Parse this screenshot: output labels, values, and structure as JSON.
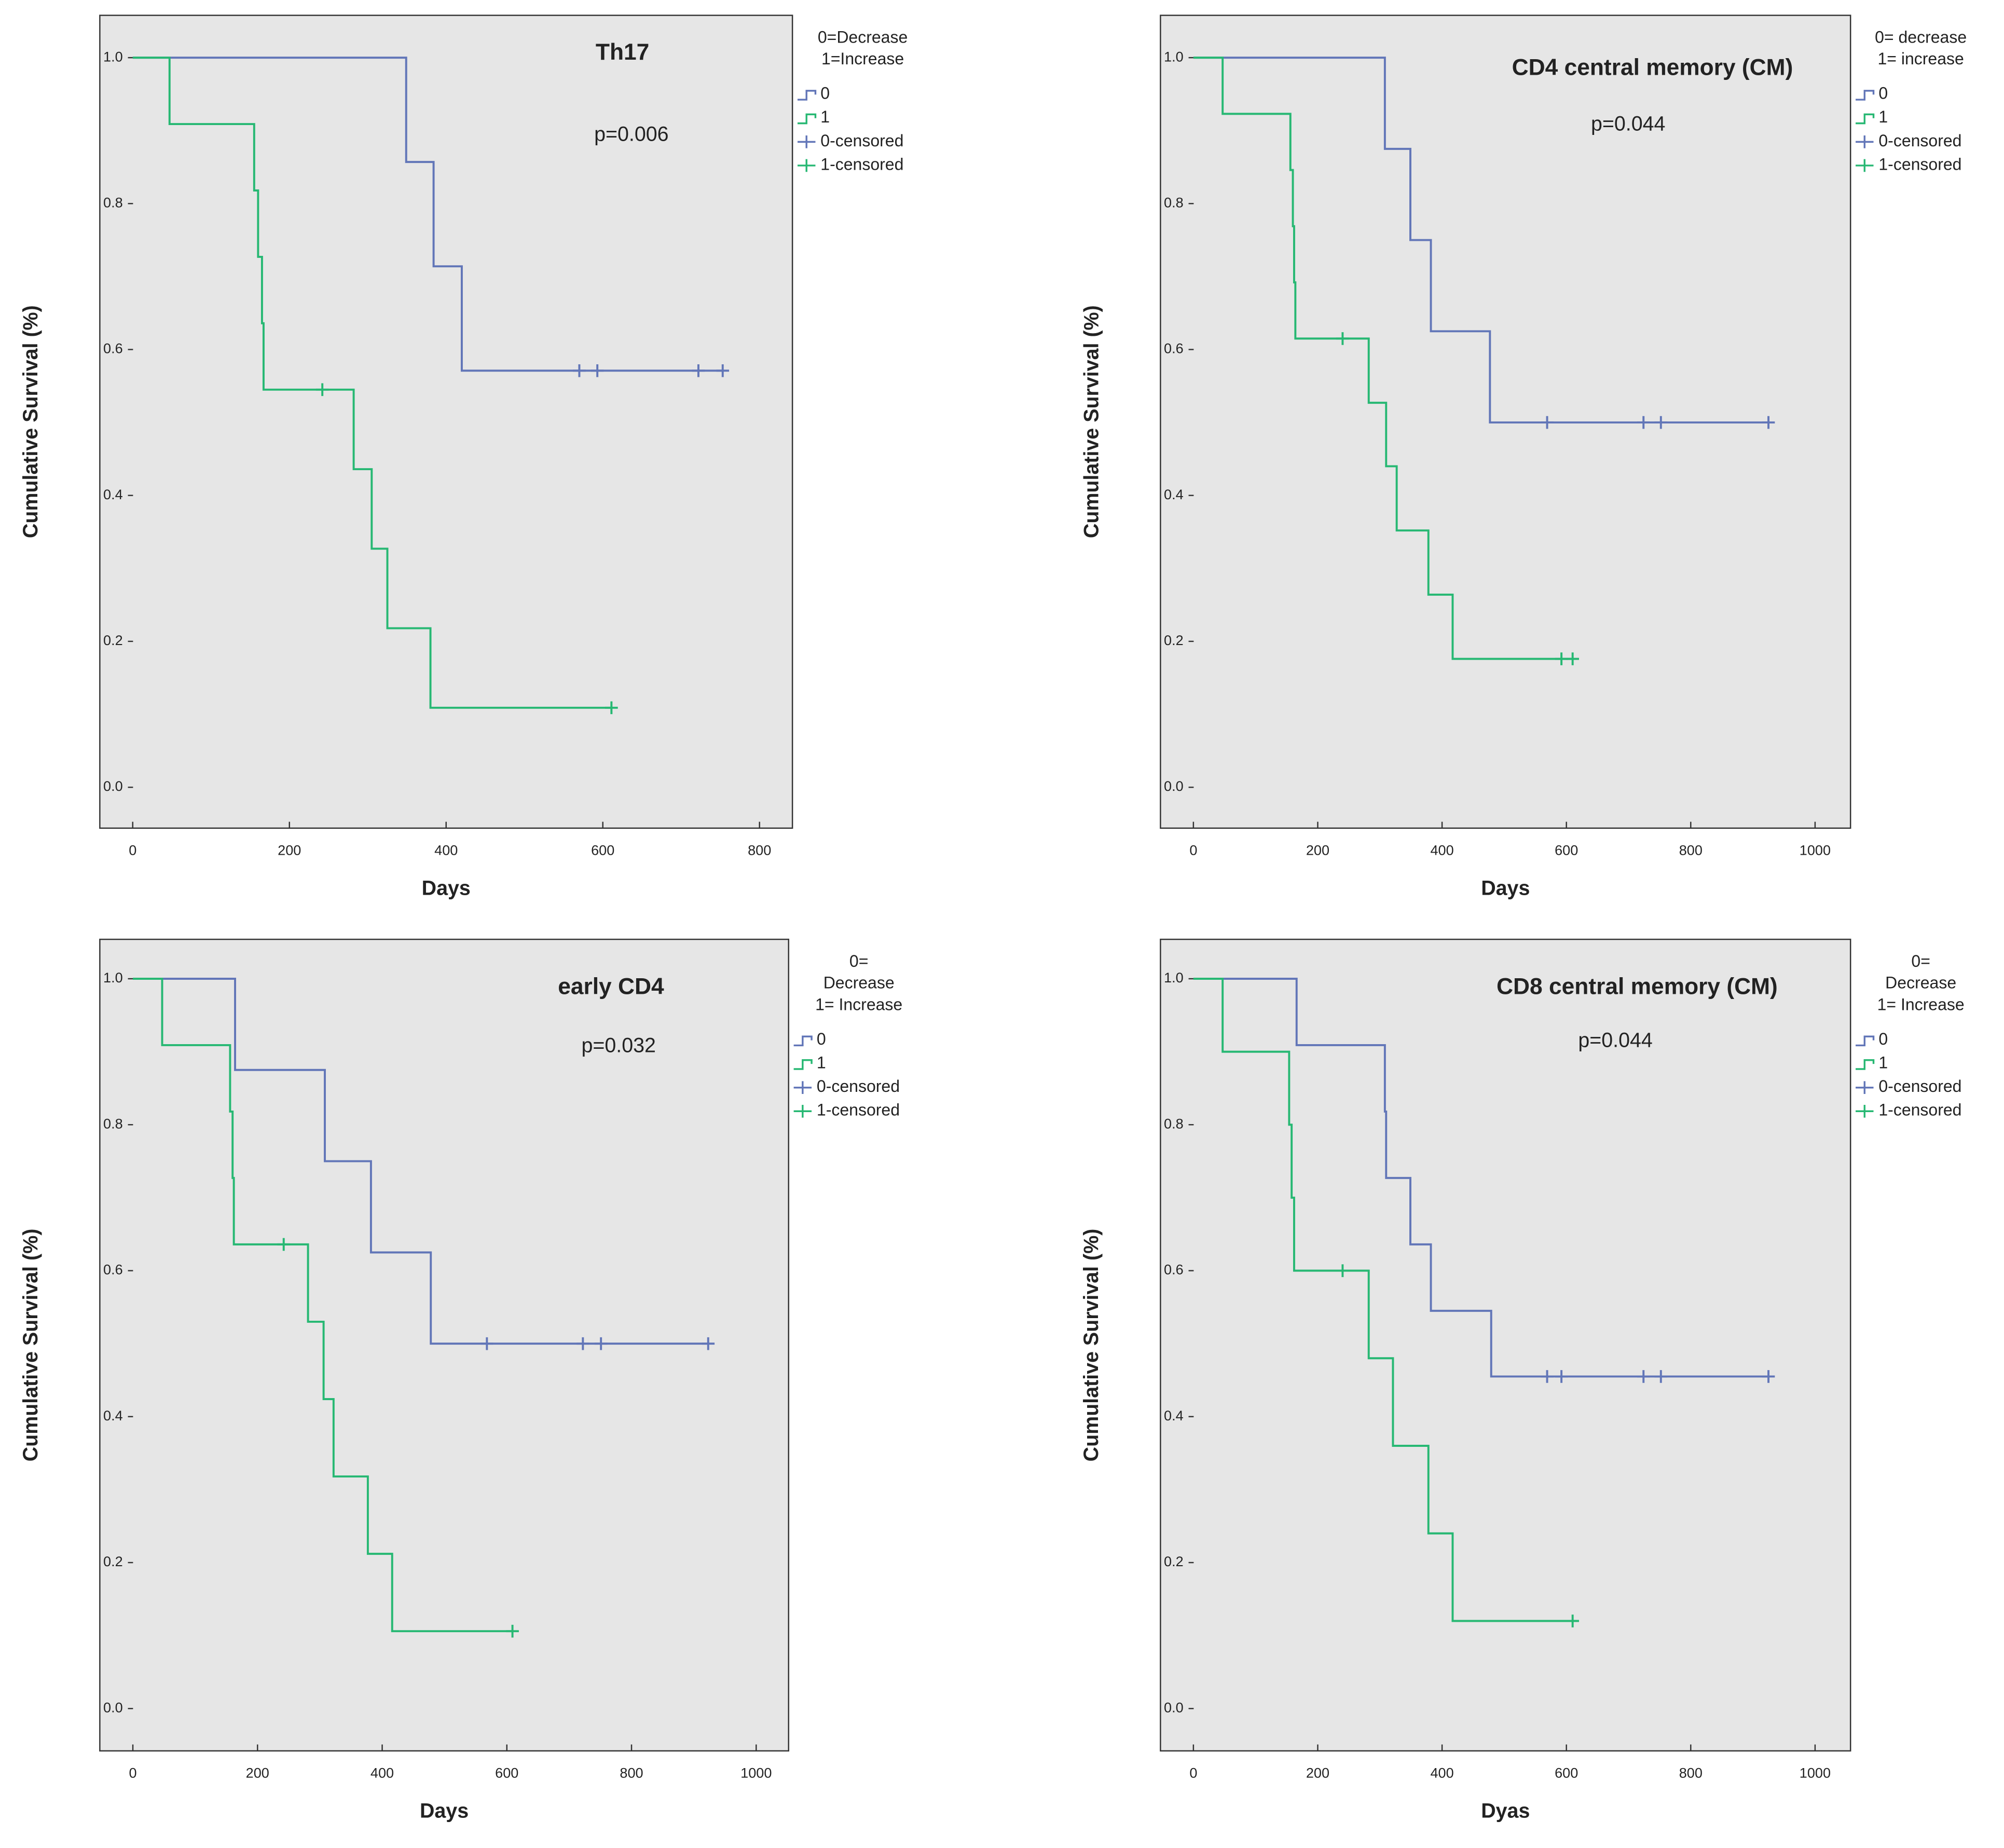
{
  "chart_data": [
    {
      "type": "step",
      "title": "Th17",
      "annotation": "p=0.006",
      "xlabel": "Days",
      "ylabel": "Cumulative Survival (%)",
      "legend_title": [
        "0=Decrease",
        "1=Increase"
      ],
      "xlim": [
        -42,
        842
      ],
      "xticks": [
        0,
        200,
        400,
        600,
        800
      ],
      "ylim": [
        -0.056,
        1.058
      ],
      "yticks": [
        {
          "value": 0,
          "label": "0.0"
        },
        0.2,
        0.4,
        0.6,
        0.8,
        {
          "value": 1,
          "label": "1.0"
        }
      ],
      "series": [
        {
          "name": "0",
          "kind": "step",
          "color": "#6276b8",
          "x": [
            0,
            349,
            384,
            420,
            753
          ],
          "values": [
            1,
            0.857,
            0.714,
            0.571,
            0.571
          ]
        },
        {
          "name": "1",
          "kind": "step",
          "color": "#27b873",
          "x": [
            0,
            47,
            155,
            160,
            165,
            167,
            282,
            305,
            325,
            380,
            611
          ],
          "values": [
            1,
            0.909,
            0.818,
            0.727,
            0.636,
            0.545,
            0.436,
            0.327,
            0.218,
            0.109,
            0.109
          ]
        },
        {
          "name": "0-censored",
          "kind": "censored",
          "color": "#6276b8",
          "x": [
            570,
            593,
            722,
            753
          ],
          "values": [
            0.571,
            0.571,
            0.571,
            0.571
          ]
        },
        {
          "name": "1-censored",
          "kind": "censored",
          "color": "#27b873",
          "x": [
            242,
            611
          ],
          "values": [
            0.545,
            0.109
          ]
        }
      ]
    },
    {
      "type": "step",
      "title": "CD4 central memory (CM)",
      "annotation": "p=0.044",
      "xlabel": "Days",
      "ylabel": "Cumulative Survival (%)",
      "legend_title": [
        "0= decrease",
        "1= increase"
      ],
      "xlim": [
        -53,
        1057
      ],
      "xticks": [
        0,
        200,
        400,
        600,
        800,
        1000
      ],
      "ylim": [
        -0.056,
        1.058
      ],
      "yticks": [
        {
          "value": 0,
          "label": "0.0"
        },
        0.2,
        0.4,
        0.6,
        0.8,
        {
          "value": 1,
          "label": "1.0"
        }
      ],
      "series": [
        {
          "name": "0",
          "kind": "step",
          "color": "#6276b8",
          "x": [
            0,
            308,
            349,
            382,
            477,
            925
          ],
          "values": [
            1,
            0.875,
            0.75,
            0.625,
            0.5,
            0.5
          ]
        },
        {
          "name": "1",
          "kind": "step",
          "color": "#27b873",
          "x": [
            0,
            47,
            156,
            160,
            162,
            164,
            282,
            310,
            327,
            378,
            417,
            610
          ],
          "values": [
            1,
            0.923,
            0.846,
            0.769,
            0.692,
            0.615,
            0.527,
            0.44,
            0.352,
            0.264,
            0.176,
            0.176
          ]
        },
        {
          "name": "0-censored",
          "kind": "censored",
          "color": "#6276b8",
          "x": [
            569,
            724,
            752,
            925
          ],
          "values": [
            0.5,
            0.5,
            0.5,
            0.5
          ]
        },
        {
          "name": "1-censored",
          "kind": "censored",
          "color": "#27b873",
          "x": [
            240,
            592,
            610
          ],
          "values": [
            0.615,
            0.176,
            0.176
          ]
        }
      ]
    },
    {
      "type": "step",
      "title": "early CD4",
      "annotation": "p=0.032",
      "xlabel": "Days",
      "ylabel": "Cumulative Survival (%)",
      "legend_title": [
        "0=",
        "Decrease",
        "1= Increase"
      ],
      "xlim": [
        -53,
        1052
      ],
      "xticks": [
        0,
        200,
        400,
        600,
        800,
        1000
      ],
      "ylim": [
        -0.058,
        1.054
      ],
      "yticks": [
        {
          "value": 0,
          "label": "0.0"
        },
        0.2,
        0.4,
        0.6,
        0.8,
        {
          "value": 1,
          "label": "1.0"
        }
      ],
      "series": [
        {
          "name": "0",
          "kind": "step",
          "color": "#6276b8",
          "x": [
            0,
            164,
            308,
            382,
            478,
            923
          ],
          "values": [
            1,
            0.875,
            0.75,
            0.625,
            0.5,
            0.5
          ]
        },
        {
          "name": "1",
          "kind": "step",
          "color": "#27b873",
          "x": [
            0,
            47,
            156,
            160,
            162,
            281,
            306,
            322,
            377,
            416,
            609
          ],
          "values": [
            1,
            0.909,
            0.818,
            0.727,
            0.636,
            0.53,
            0.424,
            0.318,
            0.212,
            0.106,
            0.106
          ]
        },
        {
          "name": "0-censored",
          "kind": "censored",
          "color": "#6276b8",
          "x": [
            568,
            722,
            751,
            923
          ],
          "values": [
            0.5,
            0.5,
            0.5,
            0.5
          ]
        },
        {
          "name": "1-censored",
          "kind": "censored",
          "color": "#27b873",
          "x": [
            242,
            609
          ],
          "values": [
            0.636,
            0.106
          ]
        }
      ]
    },
    {
      "type": "step",
      "title": "CD8 central memory (CM)",
      "annotation": "p=0.044",
      "xlabel": "Dyas",
      "ylabel": "Cumulative Survival (%)",
      "legend_title": [
        "0=",
        "Decrease",
        "1= Increase"
      ],
      "xlim": [
        -53,
        1057
      ],
      "xticks": [
        0,
        200,
        400,
        600,
        800,
        1000
      ],
      "ylim": [
        -0.058,
        1.054
      ],
      "yticks": [
        {
          "value": 0,
          "label": "0.0"
        },
        0.2,
        0.4,
        0.6,
        0.8,
        {
          "value": 1,
          "label": "1.0"
        }
      ],
      "series": [
        {
          "name": "0",
          "kind": "step",
          "color": "#6276b8",
          "x": [
            0,
            166,
            308,
            310,
            349,
            382,
            479,
            925
          ],
          "values": [
            1,
            0.909,
            0.818,
            0.727,
            0.636,
            0.545,
            0.455,
            0.455
          ]
        },
        {
          "name": "1",
          "kind": "step",
          "color": "#27b873",
          "x": [
            0,
            47,
            154,
            158,
            162,
            282,
            321,
            378,
            417,
            610
          ],
          "values": [
            1,
            0.9,
            0.8,
            0.7,
            0.6,
            0.48,
            0.36,
            0.24,
            0.12,
            0.12
          ]
        },
        {
          "name": "0-censored",
          "kind": "censored",
          "color": "#6276b8",
          "x": [
            569,
            592,
            724,
            752,
            925
          ],
          "values": [
            0.455,
            0.455,
            0.455,
            0.455,
            0.455
          ]
        },
        {
          "name": "1-censored",
          "kind": "censored",
          "color": "#27b873",
          "x": [
            240,
            610
          ],
          "values": [
            0.6,
            0.12
          ]
        }
      ]
    }
  ]
}
